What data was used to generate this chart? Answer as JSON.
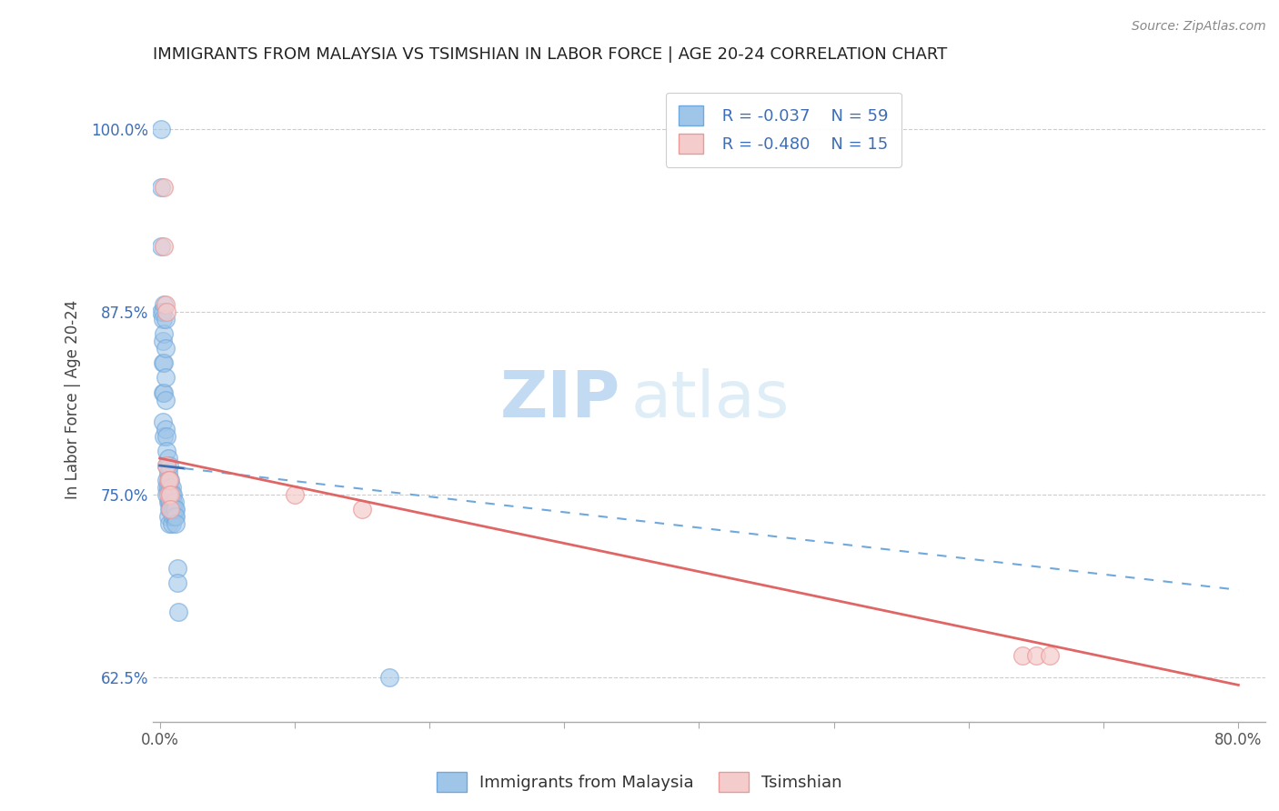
{
  "title": "IMMIGRANTS FROM MALAYSIA VS TSIMSHIAN IN LABOR FORCE | AGE 20-24 CORRELATION CHART",
  "source": "Source: ZipAtlas.com",
  "xlabel": "",
  "ylabel": "In Labor Force | Age 20-24",
  "xlim": [
    -0.005,
    0.82
  ],
  "ylim": [
    0.595,
    1.035
  ],
  "xticks": [
    0.0,
    0.1,
    0.2,
    0.3,
    0.4,
    0.5,
    0.6,
    0.7,
    0.8
  ],
  "xticklabels": [
    "0.0%",
    "",
    "",
    "",
    "",
    "",
    "",
    "",
    "80.0%"
  ],
  "yticks": [
    0.625,
    0.75,
    0.875,
    1.0
  ],
  "yticklabels": [
    "62.5%",
    "75.0%",
    "87.5%",
    "100.0%"
  ],
  "blue_color": "#6fa8dc",
  "pink_color": "#ea9999",
  "blue_fill": "#9fc5e8",
  "pink_fill": "#f4cccc",
  "trend_blue": "#3d6eb5",
  "trend_blue_dashed": "#6fa8dc",
  "trend_pink": "#e06666",
  "legend_r1": "R = -0.037",
  "legend_n1": "N = 59",
  "legend_r2": "R = -0.480",
  "legend_n2": "N = 15",
  "legend_label1": "Immigrants from Malaysia",
  "legend_label2": "Tsimshian",
  "watermark_zip": "ZIP",
  "watermark_atlas": "atlas",
  "blue_x": [
    0.001,
    0.001,
    0.001,
    0.001,
    0.002,
    0.002,
    0.002,
    0.002,
    0.002,
    0.002,
    0.003,
    0.003,
    0.003,
    0.003,
    0.003,
    0.004,
    0.004,
    0.004,
    0.004,
    0.004,
    0.005,
    0.005,
    0.005,
    0.005,
    0.005,
    0.005,
    0.006,
    0.006,
    0.006,
    0.006,
    0.006,
    0.007,
    0.007,
    0.007,
    0.007,
    0.007,
    0.007,
    0.008,
    0.008,
    0.008,
    0.008,
    0.009,
    0.009,
    0.009,
    0.009,
    0.01,
    0.01,
    0.01,
    0.01,
    0.011,
    0.011,
    0.011,
    0.012,
    0.012,
    0.012,
    0.013,
    0.013,
    0.014,
    0.17
  ],
  "blue_y": [
    1.0,
    0.96,
    0.92,
    0.875,
    0.875,
    0.87,
    0.855,
    0.84,
    0.82,
    0.8,
    0.88,
    0.86,
    0.84,
    0.82,
    0.79,
    0.87,
    0.85,
    0.83,
    0.815,
    0.795,
    0.79,
    0.78,
    0.77,
    0.76,
    0.755,
    0.75,
    0.775,
    0.765,
    0.755,
    0.745,
    0.735,
    0.77,
    0.76,
    0.75,
    0.745,
    0.74,
    0.73,
    0.76,
    0.755,
    0.745,
    0.74,
    0.755,
    0.75,
    0.74,
    0.73,
    0.75,
    0.745,
    0.74,
    0.735,
    0.745,
    0.74,
    0.735,
    0.74,
    0.735,
    0.73,
    0.7,
    0.69,
    0.67,
    0.625
  ],
  "pink_x": [
    0.003,
    0.003,
    0.004,
    0.005,
    0.005,
    0.006,
    0.006,
    0.007,
    0.008,
    0.008,
    0.1,
    0.15,
    0.64,
    0.65,
    0.66
  ],
  "pink_y": [
    0.96,
    0.92,
    0.88,
    0.875,
    0.77,
    0.76,
    0.75,
    0.76,
    0.75,
    0.74,
    0.75,
    0.74,
    0.64,
    0.64,
    0.64
  ],
  "blue_trend_x0": 0.0,
  "blue_trend_y0": 0.77,
  "blue_trend_x1": 0.8,
  "blue_trend_y1": 0.685,
  "pink_trend_x0": 0.0,
  "pink_trend_y0": 0.775,
  "pink_trend_x1": 0.8,
  "pink_trend_y1": 0.62
}
